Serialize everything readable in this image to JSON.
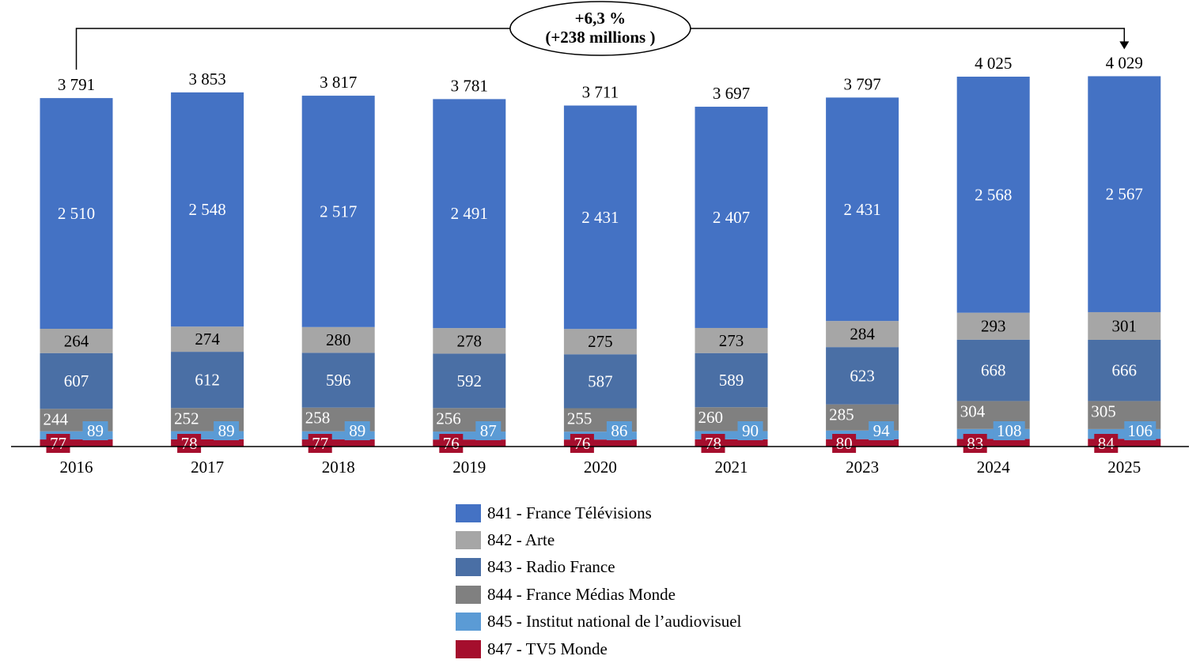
{
  "chart_data": {
    "type": "bar",
    "stacked": true,
    "title": "",
    "xlabel": "",
    "ylabel": "",
    "categories": [
      "2016",
      "2017",
      "2018",
      "2019",
      "2020",
      "2021",
      "2023",
      "2024",
      "2025"
    ],
    "series": [
      {
        "name": "847 - TV5 Monde",
        "color": "#A50E2D",
        "values": [
          77,
          78,
          77,
          76,
          76,
          78,
          80,
          83,
          84
        ],
        "labels": [
          "77",
          "78",
          "77",
          "76",
          "76",
          "78",
          "80",
          "83",
          "84"
        ]
      },
      {
        "name": "845 - Institut national de l’audiovisuel",
        "color": "#5B9BD5",
        "values": [
          89,
          89,
          89,
          87,
          86,
          90,
          94,
          108,
          106
        ],
        "labels": [
          "89",
          "89",
          "89",
          "87",
          "86",
          "90",
          "94",
          "108",
          "106"
        ]
      },
      {
        "name": "844 - France Médias Monde",
        "color": "#808080",
        "values": [
          244,
          252,
          258,
          256,
          255,
          260,
          285,
          304,
          305
        ],
        "labels": [
          "244",
          "252",
          "258",
          "256",
          "255",
          "260",
          "285",
          "304",
          "305"
        ]
      },
      {
        "name": "843 - Radio France",
        "color": "#4A6FA5",
        "values": [
          607,
          612,
          596,
          592,
          587,
          589,
          623,
          668,
          666
        ],
        "labels": [
          "607",
          "612",
          "596",
          "592",
          "587",
          "589",
          "623",
          "668",
          "666"
        ]
      },
      {
        "name": "842 - Arte",
        "color": "#A6A6A6",
        "values": [
          264,
          274,
          280,
          278,
          275,
          273,
          284,
          293,
          301
        ],
        "labels": [
          "264",
          "274",
          "280",
          "278",
          "275",
          "273",
          "284",
          "293",
          "301"
        ]
      },
      {
        "name": "841 - France Télévisions",
        "color": "#4472C4",
        "values": [
          2510,
          2548,
          2517,
          2491,
          2431,
          2407,
          2431,
          2568,
          2567
        ],
        "labels": [
          "2 510",
          "2 548",
          "2 517",
          "2 491",
          "2 431",
          "2 407",
          "2 431",
          "2 568",
          "2 567"
        ]
      }
    ],
    "totals": [
      3791,
      3853,
      3817,
      3781,
      3711,
      3697,
      3797,
      4025,
      4029
    ],
    "total_labels": [
      "3 791",
      "3 853",
      "3 817",
      "3 781",
      "3 711",
      "3 697",
      "3 797",
      "4 025",
      "4 029"
    ],
    "legend_order": [
      5,
      4,
      3,
      2,
      1,
      0
    ],
    "legend_position": "bottom",
    "grid": false,
    "annotation": {
      "line1": "+6,3 %",
      "line2": "(+238 millions )",
      "from_category": "2016",
      "to_category": "2025"
    }
  }
}
